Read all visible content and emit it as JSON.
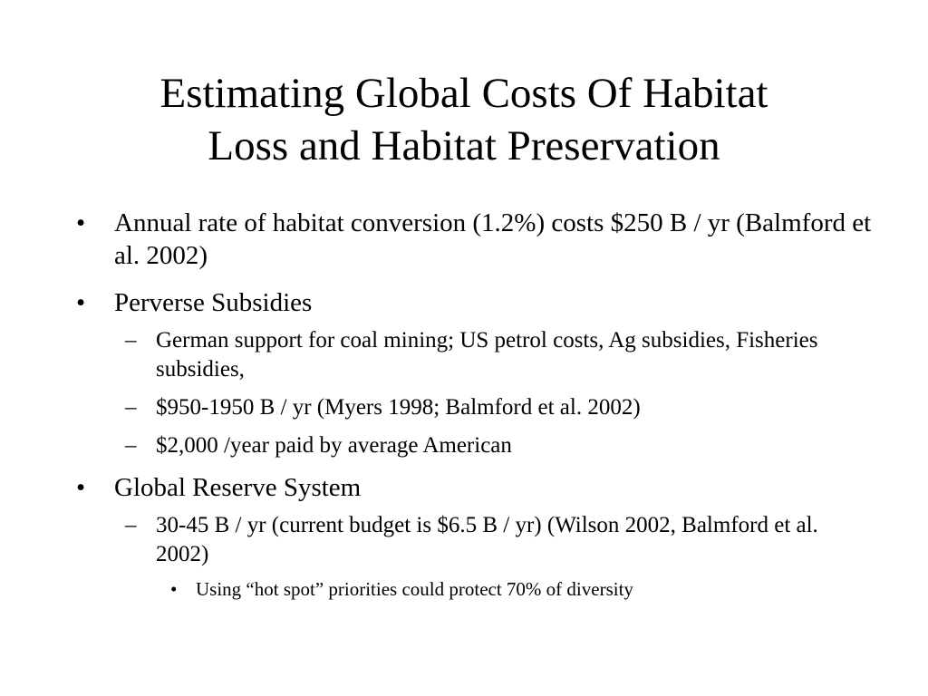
{
  "slide": {
    "title_line1": "Estimating Global Costs Of Habitat",
    "title_line2": "Loss and Habitat Preservation",
    "bullet_glyph": "•",
    "dash_glyph": "–",
    "items": [
      {
        "text": "Annual rate of habitat conversion (1.2%) costs $250 B / yr (Balmford et al. 2002)",
        "sub": []
      },
      {
        "text": "Perverse Subsidies",
        "sub": [
          {
            "text": "German support for coal mining; US petrol costs, Ag subsidies, Fisheries subsidies,"
          },
          {
            "text": "$950-1950 B / yr (Myers 1998; Balmford et al. 2002)"
          },
          {
            "text": "$2,000 /year paid by average American"
          }
        ]
      },
      {
        "text": "Global Reserve System",
        "sub": [
          {
            "text": "30-45 B / yr  (current budget is $6.5 B / yr) (Wilson 2002, Balmford et al. 2002)",
            "sub": [
              {
                "text": "Using “hot spot” priorities could protect 70% of diversity"
              }
            ]
          }
        ]
      }
    ]
  }
}
